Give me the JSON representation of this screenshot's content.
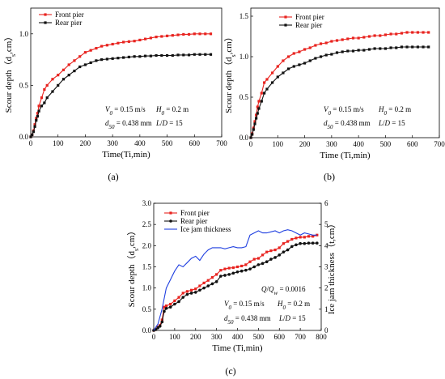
{
  "figure": {
    "captions": [
      "(a)",
      "(b)",
      "(c)"
    ]
  },
  "chart_data": [
    {
      "type": "line",
      "panel": "a",
      "xlabel": "Time(Ti,min)",
      "ylabel": "Scour depth（d",
      "ylabel_sub": "s",
      "ylabel_end": ",cm）",
      "xlim": [
        0,
        700
      ],
      "ylim": [
        0.0,
        1.25
      ],
      "xticks": [
        0,
        100,
        200,
        300,
        400,
        500,
        600,
        700
      ],
      "yticks": [
        0.0,
        0.5,
        1.0
      ],
      "legend_position": "top-left",
      "annotations": [
        {
          "sym": "V",
          "sub": "0",
          "val": " = 0.15 m/s"
        },
        {
          "sym": "H",
          "sub": "0",
          "val": " = 0.2 m"
        },
        {
          "sym": "d",
          "sub": "50",
          "val": " = 0.438 mm"
        },
        {
          "sym": "L",
          "sub": "",
          "val": "/",
          "sym2": "D",
          "val2": " = 15"
        }
      ],
      "series": [
        {
          "name": "Front pier",
          "color": "#e8231f",
          "marker": "square",
          "x": [
            0,
            5,
            10,
            15,
            20,
            25,
            30,
            40,
            50,
            60,
            80,
            100,
            120,
            140,
            160,
            180,
            200,
            220,
            240,
            260,
            280,
            300,
            320,
            340,
            360,
            380,
            400,
            420,
            440,
            460,
            480,
            500,
            520,
            540,
            560,
            580,
            600,
            620,
            640,
            660
          ],
          "y": [
            0,
            0.02,
            0.06,
            0.12,
            0.18,
            0.23,
            0.3,
            0.38,
            0.46,
            0.5,
            0.56,
            0.6,
            0.65,
            0.7,
            0.74,
            0.78,
            0.82,
            0.84,
            0.86,
            0.88,
            0.89,
            0.9,
            0.91,
            0.92,
            0.925,
            0.93,
            0.94,
            0.95,
            0.96,
            0.97,
            0.975,
            0.98,
            0.985,
            0.99,
            0.995,
            0.995,
            1.0,
            1.0,
            1.0,
            1.0
          ]
        },
        {
          "name": "Rear pier",
          "color": "#111111",
          "marker": "square",
          "x": [
            0,
            5,
            10,
            15,
            20,
            25,
            30,
            40,
            50,
            60,
            80,
            100,
            120,
            140,
            160,
            180,
            200,
            220,
            240,
            260,
            280,
            300,
            320,
            340,
            360,
            380,
            400,
            420,
            440,
            460,
            480,
            500,
            520,
            540,
            560,
            580,
            600,
            620,
            640,
            660
          ],
          "y": [
            0,
            0.02,
            0.05,
            0.1,
            0.16,
            0.2,
            0.25,
            0.3,
            0.33,
            0.38,
            0.44,
            0.5,
            0.56,
            0.6,
            0.64,
            0.68,
            0.7,
            0.72,
            0.74,
            0.75,
            0.755,
            0.76,
            0.765,
            0.77,
            0.775,
            0.78,
            0.78,
            0.785,
            0.785,
            0.79,
            0.79,
            0.79,
            0.79,
            0.795,
            0.795,
            0.795,
            0.8,
            0.8,
            0.8,
            0.8
          ]
        }
      ]
    },
    {
      "type": "line",
      "panel": "b",
      "xlabel": "Time (Ti,min)",
      "ylabel": "Scour depth（d",
      "ylabel_sub": "s",
      "ylabel_end": ",cm）",
      "xlim": [
        0,
        700
      ],
      "ylim": [
        0.0,
        1.6
      ],
      "xticks": [
        0,
        100,
        200,
        300,
        400,
        500,
        600,
        700
      ],
      "yticks": [
        0.0,
        0.5,
        1.0,
        1.5
      ],
      "legend_position": "top-right",
      "annotations": [
        {
          "sym": "V",
          "sub": "0",
          "val": " = 0.15 m/s"
        },
        {
          "sym": "H",
          "sub": "0",
          "val": " = 0.2 m"
        },
        {
          "sym": "d",
          "sub": "50",
          "val": " = 0.438 mm"
        },
        {
          "sym": "L",
          "sub": "",
          "val": "/",
          "sym2": "D",
          "val2": " = 15"
        }
      ],
      "series": [
        {
          "name": "Front pier",
          "color": "#e8231f",
          "marker": "square",
          "x": [
            0,
            5,
            10,
            15,
            20,
            25,
            30,
            40,
            50,
            60,
            80,
            100,
            120,
            140,
            160,
            180,
            200,
            220,
            240,
            260,
            280,
            300,
            320,
            340,
            360,
            380,
            400,
            420,
            440,
            460,
            480,
            500,
            520,
            540,
            560,
            580,
            600,
            620,
            640,
            660
          ],
          "y": [
            0,
            0.05,
            0.12,
            0.2,
            0.28,
            0.38,
            0.45,
            0.55,
            0.68,
            0.72,
            0.8,
            0.88,
            0.95,
            1.0,
            1.04,
            1.06,
            1.09,
            1.11,
            1.14,
            1.16,
            1.17,
            1.19,
            1.2,
            1.21,
            1.22,
            1.23,
            1.23,
            1.24,
            1.25,
            1.26,
            1.26,
            1.27,
            1.28,
            1.28,
            1.29,
            1.3,
            1.3,
            1.3,
            1.3,
            1.3
          ]
        },
        {
          "name": "Rear pier",
          "color": "#111111",
          "marker": "square",
          "x": [
            0,
            5,
            10,
            15,
            20,
            25,
            30,
            40,
            50,
            60,
            80,
            100,
            120,
            140,
            160,
            180,
            200,
            220,
            240,
            260,
            280,
            300,
            320,
            340,
            360,
            380,
            400,
            420,
            440,
            460,
            480,
            500,
            520,
            540,
            560,
            580,
            600,
            620,
            640,
            660
          ],
          "y": [
            0,
            0.04,
            0.1,
            0.17,
            0.24,
            0.3,
            0.36,
            0.45,
            0.55,
            0.6,
            0.68,
            0.75,
            0.8,
            0.85,
            0.88,
            0.9,
            0.92,
            0.95,
            0.98,
            1.0,
            1.02,
            1.03,
            1.05,
            1.06,
            1.07,
            1.07,
            1.08,
            1.08,
            1.09,
            1.1,
            1.1,
            1.1,
            1.11,
            1.11,
            1.12,
            1.12,
            1.12,
            1.12,
            1.12,
            1.12
          ]
        }
      ]
    },
    {
      "type": "line",
      "panel": "c",
      "xlabel": "Time (Ti,min)",
      "ylabel": "Scour depth（d",
      "ylabel_sub": "s",
      "ylabel_end": ",cm）",
      "y2label": "Ice jam thickness（t,cm）",
      "xlim": [
        0,
        800
      ],
      "ylim": [
        0.0,
        3.0
      ],
      "y2lim": [
        0,
        6
      ],
      "xticks": [
        0,
        100,
        200,
        300,
        400,
        500,
        600,
        700,
        800
      ],
      "yticks": [
        0.0,
        0.5,
        1.0,
        1.5,
        2.0,
        2.5,
        3.0
      ],
      "y2ticks": [
        0,
        1,
        2,
        3,
        4,
        5,
        6
      ],
      "legend_position": "top-left",
      "annotations": [
        {
          "sym": "Q",
          "sub": "",
          "val": "/",
          "sym2": "Q",
          "sub2": "w",
          "val2": " = 0.0016"
        },
        {
          "sym": "V",
          "sub": "0",
          "val": " = 0.15 m/s"
        },
        {
          "sym": "H",
          "sub": "0",
          "val": " = 0.2 m"
        },
        {
          "sym": "d",
          "sub": "50",
          "val": " = 0.438 mm"
        },
        {
          "sym": "L",
          "sub": "",
          "val": "/",
          "sym2": "D",
          "val2": " = 15"
        }
      ],
      "series": [
        {
          "name": "Front pier",
          "color": "#e8231f",
          "marker": "square",
          "axis": "left",
          "x": [
            0,
            10,
            20,
            30,
            40,
            50,
            60,
            80,
            100,
            120,
            140,
            160,
            180,
            200,
            220,
            240,
            260,
            280,
            300,
            320,
            340,
            360,
            380,
            400,
            420,
            440,
            460,
            480,
            500,
            520,
            540,
            560,
            580,
            600,
            620,
            640,
            660,
            680,
            700,
            720,
            740,
            760,
            780
          ],
          "y": [
            0,
            0.03,
            0.08,
            0.12,
            0.25,
            0.55,
            0.58,
            0.62,
            0.7,
            0.78,
            0.88,
            0.92,
            0.95,
            0.98,
            1.05,
            1.12,
            1.18,
            1.25,
            1.32,
            1.42,
            1.45,
            1.47,
            1.48,
            1.5,
            1.52,
            1.55,
            1.62,
            1.68,
            1.7,
            1.78,
            1.85,
            1.88,
            1.9,
            1.95,
            2.05,
            2.1,
            2.15,
            2.18,
            2.2,
            2.2,
            2.22,
            2.22,
            2.25
          ]
        },
        {
          "name": "Rear pier",
          "color": "#111111",
          "marker": "circle",
          "axis": "left",
          "x": [
            0,
            10,
            20,
            30,
            40,
            50,
            60,
            80,
            100,
            120,
            140,
            160,
            180,
            200,
            220,
            240,
            260,
            280,
            300,
            320,
            340,
            360,
            380,
            400,
            420,
            440,
            460,
            480,
            500,
            520,
            540,
            560,
            580,
            600,
            620,
            640,
            660,
            680,
            700,
            720,
            740,
            760,
            780
          ],
          "y": [
            0,
            0.02,
            0.06,
            0.1,
            0.2,
            0.45,
            0.52,
            0.55,
            0.62,
            0.68,
            0.78,
            0.85,
            0.88,
            0.9,
            0.95,
            1.0,
            1.05,
            1.1,
            1.15,
            1.28,
            1.3,
            1.32,
            1.35,
            1.38,
            1.4,
            1.42,
            1.45,
            1.5,
            1.55,
            1.58,
            1.62,
            1.68,
            1.72,
            1.78,
            1.85,
            1.9,
            1.98,
            2.02,
            2.05,
            2.05,
            2.06,
            2.06,
            2.06
          ]
        },
        {
          "name": "Ice jam thickness",
          "color": "#1f3fe0",
          "marker": "none",
          "axis": "right",
          "x": [
            0,
            20,
            40,
            60,
            80,
            100,
            120,
            140,
            160,
            180,
            200,
            220,
            240,
            260,
            280,
            300,
            320,
            340,
            360,
            380,
            400,
            420,
            440,
            460,
            480,
            500,
            520,
            540,
            560,
            580,
            600,
            620,
            640,
            660,
            680,
            700,
            720,
            740,
            760,
            780
          ],
          "y": [
            0,
            0.3,
            1.0,
            2.0,
            2.4,
            2.8,
            3.1,
            3.0,
            3.2,
            3.4,
            3.5,
            3.3,
            3.6,
            3.8,
            3.9,
            3.9,
            3.9,
            3.85,
            3.9,
            3.95,
            3.9,
            3.9,
            3.95,
            4.5,
            4.6,
            4.7,
            4.6,
            4.6,
            4.65,
            4.7,
            4.6,
            4.7,
            4.75,
            4.7,
            4.6,
            4.5,
            4.6,
            4.55,
            4.5,
            4.5
          ]
        }
      ]
    }
  ]
}
